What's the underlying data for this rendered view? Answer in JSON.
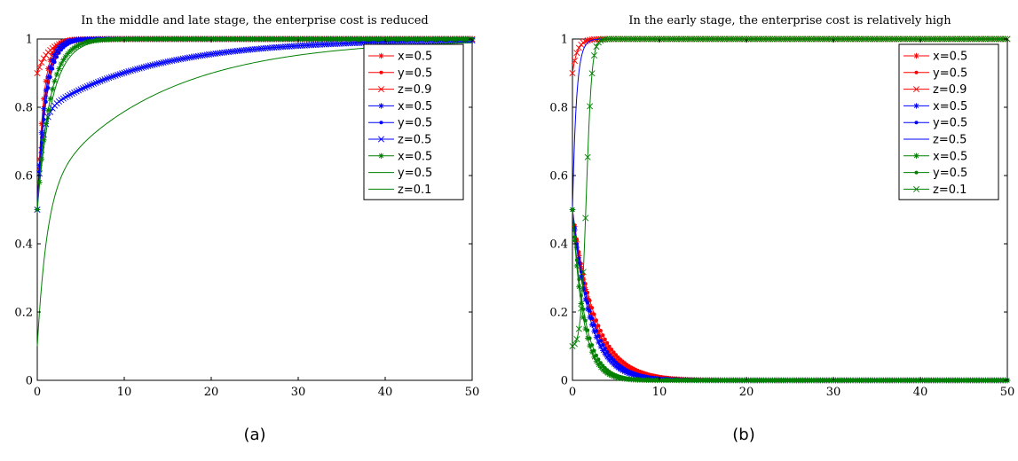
{
  "chart_data": [
    {
      "type": "line",
      "caption": "(a)",
      "title": "In the middle and late stage, the enterprise cost is reduced",
      "xlim": [
        0,
        50
      ],
      "ylim": [
        0,
        1
      ],
      "x_ticks": [
        0,
        10,
        20,
        30,
        40,
        50
      ],
      "y_ticks": [
        0,
        0.2,
        0.4,
        0.6,
        0.8,
        1
      ],
      "grid": false,
      "legend_position": "top-right",
      "series": [
        {
          "name": "x=0.5",
          "color": "#ff0000",
          "marker": "star",
          "initial": 0.5,
          "final": 1.0,
          "rate": 1.4
        },
        {
          "name": "y=0.5",
          "color": "#ff0000",
          "marker": "dot",
          "initial": 0.5,
          "final": 1.0,
          "rate": 1.1
        },
        {
          "name": "z=0.9",
          "color": "#ff0000",
          "marker": "x",
          "initial": 0.9,
          "final": 1.0,
          "rate": 0.75
        },
        {
          "name": "x=0.5",
          "color": "#0000ff",
          "marker": "star",
          "initial": 0.5,
          "final": 1.0,
          "rate": 1.2
        },
        {
          "name": "y=0.5",
          "color": "#0000ff",
          "marker": "dot",
          "initial": 0.5,
          "final": 1.0,
          "rate": 1.0
        },
        {
          "name": "z=0.5",
          "color": "#0000ff",
          "marker": "x",
          "initial": 0.5,
          "final": 1.0,
          "shape": "twophase",
          "fast_level": 0.78,
          "fast_rate": 1.8,
          "slow_rate": 0.08
        },
        {
          "name": "x=0.5",
          "color": "#008000",
          "marker": "star",
          "initial": 0.5,
          "final": 1.0,
          "rate": 0.7
        },
        {
          "name": "y=0.5",
          "color": "#008000",
          "marker": "none",
          "initial": 0.5,
          "final": 1.0,
          "rate": 0.6
        },
        {
          "name": "z=0.1",
          "color": "#008000",
          "marker": "none",
          "initial": 0.1,
          "final": 1.0,
          "shape": "twophase",
          "fast_level": 0.55,
          "fast_rate": 0.9,
          "slow_rate": 0.075
        }
      ]
    },
    {
      "type": "line",
      "caption": "(b)",
      "title": "In the early stage, the enterprise cost is relatively high",
      "xlim": [
        0,
        50
      ],
      "ylim": [
        0,
        1
      ],
      "x_ticks": [
        0,
        10,
        20,
        30,
        40,
        50
      ],
      "y_ticks": [
        0,
        0.2,
        0.4,
        0.6,
        0.8,
        1
      ],
      "grid": false,
      "legend_position": "top-right",
      "series": [
        {
          "name": "x=0.5",
          "color": "#ff0000",
          "marker": "star",
          "initial": 0.5,
          "final": 0.0,
          "rate": 0.42
        },
        {
          "name": "y=0.5",
          "color": "#ff0000",
          "marker": "dot",
          "initial": 0.5,
          "final": 0.0,
          "rate": 0.38
        },
        {
          "name": "z=0.9",
          "color": "#ff0000",
          "marker": "x",
          "initial": 0.9,
          "final": 1.0,
          "rate": 1.8
        },
        {
          "name": "x=0.5",
          "color": "#0000ff",
          "marker": "star",
          "initial": 0.5,
          "final": 0.0,
          "rate": 0.5
        },
        {
          "name": "y=0.5",
          "color": "#0000ff",
          "marker": "dot",
          "initial": 0.5,
          "final": 0.0,
          "rate": 0.45
        },
        {
          "name": "z=0.5",
          "color": "#0000ff",
          "marker": "none",
          "initial": 0.5,
          "final": 1.0,
          "rate": 2.2
        },
        {
          "name": "x=0.5",
          "color": "#008000",
          "marker": "star",
          "initial": 0.5,
          "final": 0.0,
          "rate": 0.8
        },
        {
          "name": "y=0.5",
          "color": "#008000",
          "marker": "dot",
          "initial": 0.5,
          "final": 0.0,
          "rate": 0.7
        },
        {
          "name": "z=0.1",
          "color": "#008000",
          "marker": "x",
          "initial": 0.1,
          "final": 1.0,
          "shape": "logistic",
          "midpoint": 1.6,
          "steepness": 3.2
        }
      ]
    }
  ]
}
